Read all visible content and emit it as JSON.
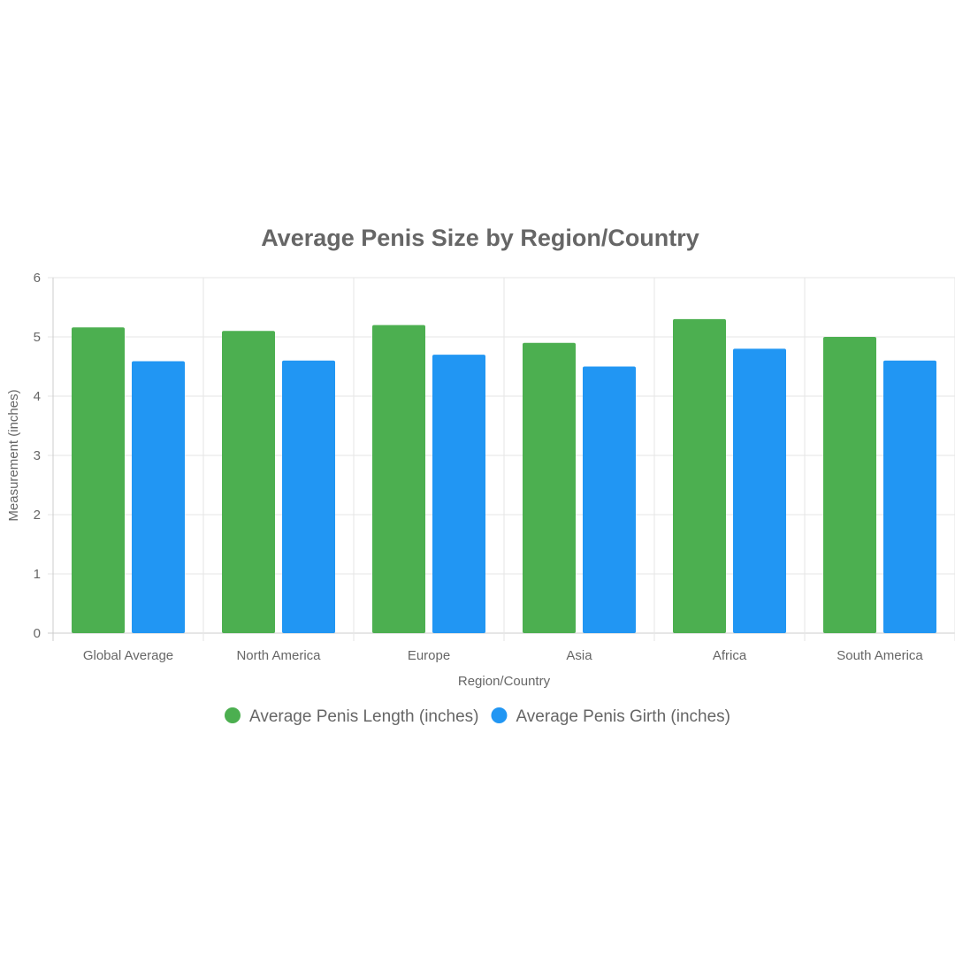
{
  "chart_data": {
    "type": "bar",
    "title": "Average Penis Size by Region/Country",
    "xlabel": "Region/Country",
    "ylabel": "Measurement (inches)",
    "ylim": [
      0,
      6
    ],
    "yticks": [
      "0",
      "1",
      "2",
      "3",
      "4",
      "5",
      "6"
    ],
    "categories": [
      "Global Average",
      "North America",
      "Europe",
      "Asia",
      "Africa",
      "South America"
    ],
    "series": [
      {
        "name": "Average Penis Length (inches)",
        "color": "#4CAF50",
        "values": [
          5.16,
          5.1,
          5.2,
          4.9,
          5.3,
          5.0
        ]
      },
      {
        "name": "Average Penis Girth (inches)",
        "color": "#2196F3",
        "values": [
          4.59,
          4.6,
          4.7,
          4.5,
          4.8,
          4.6
        ]
      }
    ],
    "grid": true,
    "legend_position": "bottom"
  }
}
